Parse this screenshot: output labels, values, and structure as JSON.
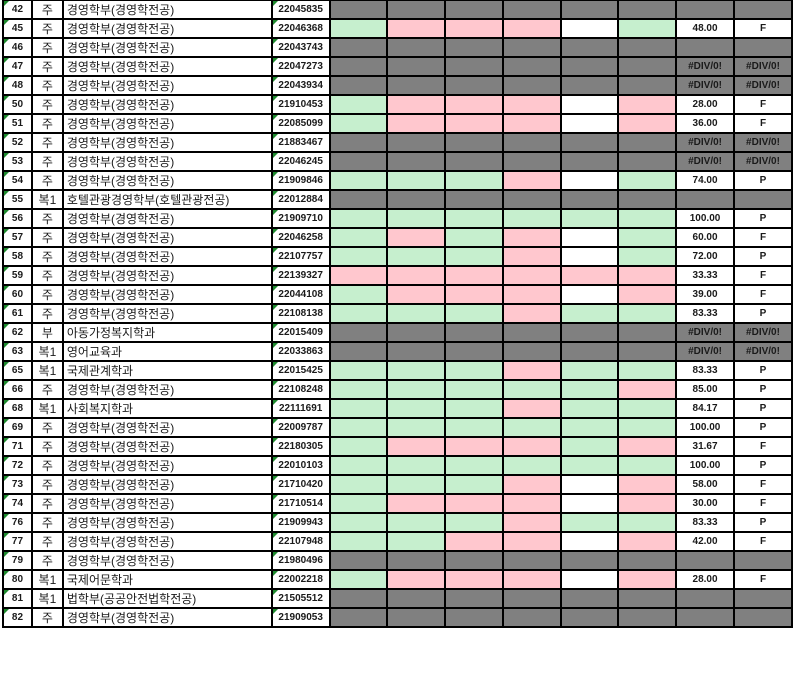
{
  "colors": {
    "G": "#c6efce",
    "R": "#ffc7ce",
    "W": "#ffffff",
    "D": "#808080"
  },
  "rows": [
    {
      "num": "42",
      "type": "주",
      "dept": "경영학부(경영학전공)",
      "id": "22045835",
      "cells": "DDDDDD",
      "score": "",
      "grade": "",
      "sg": "D"
    },
    {
      "num": "45",
      "type": "주",
      "dept": "경영학부(경영학전공)",
      "id": "22046368",
      "cells": "GRRRWG",
      "score": "48.00",
      "grade": "F",
      "sg": "W"
    },
    {
      "num": "46",
      "type": "주",
      "dept": "경영학부(경영학전공)",
      "id": "22043743",
      "cells": "DDDDDD",
      "score": "",
      "grade": "",
      "sg": "D"
    },
    {
      "num": "47",
      "type": "주",
      "dept": "경영학부(경영학전공)",
      "id": "22047273",
      "cells": "DDDDDD",
      "score": "#DIV/0!",
      "grade": "#DIV/0!",
      "sg": "D"
    },
    {
      "num": "48",
      "type": "주",
      "dept": "경영학부(경영학전공)",
      "id": "22043934",
      "cells": "DDDDDD",
      "score": "#DIV/0!",
      "grade": "#DIV/0!",
      "sg": "D"
    },
    {
      "num": "50",
      "type": "주",
      "dept": "경영학부(경영학전공)",
      "id": "21910453",
      "cells": "GRRRWR",
      "score": "28.00",
      "grade": "F",
      "sg": "W"
    },
    {
      "num": "51",
      "type": "주",
      "dept": "경영학부(경영학전공)",
      "id": "22085099",
      "cells": "GRRRWR",
      "score": "36.00",
      "grade": "F",
      "sg": "W"
    },
    {
      "num": "52",
      "type": "주",
      "dept": "경영학부(경영학전공)",
      "id": "21883467",
      "cells": "DDDDDD",
      "score": "#DIV/0!",
      "grade": "#DIV/0!",
      "sg": "D"
    },
    {
      "num": "53",
      "type": "주",
      "dept": "경영학부(경영학전공)",
      "id": "22046245",
      "cells": "DDDDDD",
      "score": "#DIV/0!",
      "grade": "#DIV/0!",
      "sg": "D"
    },
    {
      "num": "54",
      "type": "주",
      "dept": "경영학부(경영학전공)",
      "id": "21909846",
      "cells": "GGGRWG",
      "score": "74.00",
      "grade": "P",
      "sg": "W"
    },
    {
      "num": "55",
      "type": "복1",
      "dept": "호텔관광경영학부(호텔관광전공)",
      "id": "22012884",
      "cells": "DDDDDD",
      "score": "",
      "grade": "",
      "sg": "D"
    },
    {
      "num": "56",
      "type": "주",
      "dept": "경영학부(경영학전공)",
      "id": "21909710",
      "cells": "GGGGGG",
      "score": "100.00",
      "grade": "P",
      "sg": "W"
    },
    {
      "num": "57",
      "type": "주",
      "dept": "경영학부(경영학전공)",
      "id": "22046258",
      "cells": "GRGRWG",
      "score": "60.00",
      "grade": "F",
      "sg": "W"
    },
    {
      "num": "58",
      "type": "주",
      "dept": "경영학부(경영학전공)",
      "id": "22107757",
      "cells": "GGGRWG",
      "score": "72.00",
      "grade": "P",
      "sg": "W"
    },
    {
      "num": "59",
      "type": "주",
      "dept": "경영학부(경영학전공)",
      "id": "22139327",
      "cells": "RRRRRR",
      "score": "33.33",
      "grade": "F",
      "sg": "W"
    },
    {
      "num": "60",
      "type": "주",
      "dept": "경영학부(경영학전공)",
      "id": "22044108",
      "cells": "GRRRWR",
      "score": "39.00",
      "grade": "F",
      "sg": "W"
    },
    {
      "num": "61",
      "type": "주",
      "dept": "경영학부(경영학전공)",
      "id": "22108138",
      "cells": "GGGRGG",
      "score": "83.33",
      "grade": "P",
      "sg": "W"
    },
    {
      "num": "62",
      "type": "부",
      "dept": "아동가정복지학과",
      "id": "22015409",
      "cells": "DDDDDD",
      "score": "#DIV/0!",
      "grade": "#DIV/0!",
      "sg": "D"
    },
    {
      "num": "63",
      "type": "복1",
      "dept": "영어교육과",
      "id": "22033863",
      "cells": "DDDDDD",
      "score": "#DIV/0!",
      "grade": "#DIV/0!",
      "sg": "D"
    },
    {
      "num": "65",
      "type": "복1",
      "dept": "국제관계학과",
      "id": "22015425",
      "cells": "GGGRGG",
      "score": "83.33",
      "grade": "P",
      "sg": "W"
    },
    {
      "num": "66",
      "type": "주",
      "dept": "경영학부(경영학전공)",
      "id": "22108248",
      "cells": "GGGGGR",
      "score": "85.00",
      "grade": "P",
      "sg": "W"
    },
    {
      "num": "68",
      "type": "복1",
      "dept": "사회복지학과",
      "id": "22111691",
      "cells": "GGGRGG",
      "score": "84.17",
      "grade": "P",
      "sg": "W"
    },
    {
      "num": "69",
      "type": "주",
      "dept": "경영학부(경영학전공)",
      "id": "22009787",
      "cells": "GGGGGG",
      "score": "100.00",
      "grade": "P",
      "sg": "W"
    },
    {
      "num": "71",
      "type": "주",
      "dept": "경영학부(경영학전공)",
      "id": "22180305",
      "cells": "GRRRGR",
      "score": "31.67",
      "grade": "F",
      "sg": "W"
    },
    {
      "num": "72",
      "type": "주",
      "dept": "경영학부(경영학전공)",
      "id": "22010103",
      "cells": "GGGGGG",
      "score": "100.00",
      "grade": "P",
      "sg": "W"
    },
    {
      "num": "73",
      "type": "주",
      "dept": "경영학부(경영학전공)",
      "id": "21710420",
      "cells": "GGGRWR",
      "score": "58.00",
      "grade": "F",
      "sg": "W"
    },
    {
      "num": "74",
      "type": "주",
      "dept": "경영학부(경영학전공)",
      "id": "21710514",
      "cells": "GRRRWR",
      "score": "30.00",
      "grade": "F",
      "sg": "W"
    },
    {
      "num": "76",
      "type": "주",
      "dept": "경영학부(경영학전공)",
      "id": "21909943",
      "cells": "GGGRGG",
      "score": "83.33",
      "grade": "P",
      "sg": "W"
    },
    {
      "num": "77",
      "type": "주",
      "dept": "경영학부(경영학전공)",
      "id": "22107948",
      "cells": "GGRRWR",
      "score": "42.00",
      "grade": "F",
      "sg": "W"
    },
    {
      "num": "79",
      "type": "주",
      "dept": "경영학부(경영학전공)",
      "id": "21980496",
      "cells": "DDDDDD",
      "score": "",
      "grade": "",
      "sg": "D"
    },
    {
      "num": "80",
      "type": "복1",
      "dept": "국제어문학과",
      "id": "22002218",
      "cells": "GRRRWR",
      "score": "28.00",
      "grade": "F",
      "sg": "W"
    },
    {
      "num": "81",
      "type": "복1",
      "dept": "법학부(공공안전법학전공)",
      "id": "21505512",
      "cells": "DDDDDD",
      "score": "",
      "grade": "",
      "sg": "D"
    },
    {
      "num": "82",
      "type": "주",
      "dept": "경영학부(경영학전공)",
      "id": "21909053",
      "cells": "DDDDDD",
      "score": "",
      "grade": "",
      "sg": "D"
    }
  ]
}
